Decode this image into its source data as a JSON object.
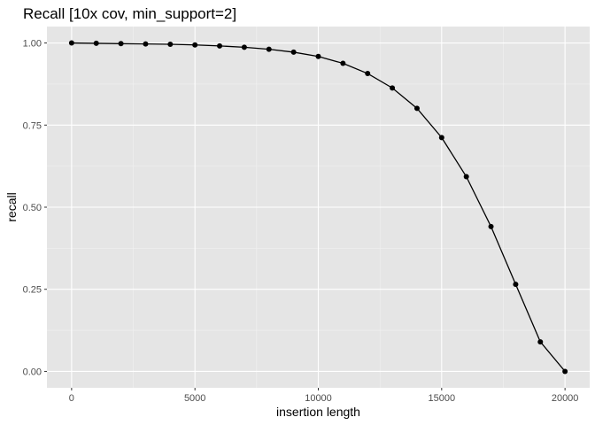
{
  "chart_data": {
    "type": "line",
    "title": "Recall [10x cov, min_support=2]",
    "xlabel": "insertion length",
    "ylabel": "recall",
    "xlim": [
      -1000,
      21000
    ],
    "ylim": [
      -0.05,
      1.05
    ],
    "x_ticks": [
      0,
      5000,
      10000,
      15000,
      20000
    ],
    "x_tick_labels": [
      "0",
      "5000",
      "10000",
      "15000",
      "20000"
    ],
    "y_ticks": [
      0,
      0.25,
      0.5,
      0.75,
      1.0
    ],
    "y_tick_labels": [
      "0.00",
      "0.25",
      "0.50",
      "0.75",
      "1.00"
    ],
    "grid": true,
    "series": [
      {
        "x": [
          0,
          1000,
          2000,
          3000,
          4000,
          5000,
          6000,
          7000,
          8000,
          9000,
          10000,
          11000,
          12000,
          13000,
          14000,
          15000,
          16000,
          17000,
          18000,
          19000,
          20000
        ],
        "y": [
          1.0,
          0.999,
          0.998,
          0.997,
          0.996,
          0.994,
          0.991,
          0.987,
          0.981,
          0.972,
          0.959,
          0.938,
          0.907,
          0.863,
          0.801,
          0.712,
          0.593,
          0.441,
          0.265,
          0.09,
          0.0
        ]
      }
    ],
    "colors": {
      "panel": "#e5e5e5",
      "grid_major": "#ffffff",
      "grid_minor": "#f2f2f2",
      "line": "#000000",
      "point": "#000000",
      "tick_label": "#4d4d4d",
      "tick_mark": "#333333"
    }
  }
}
